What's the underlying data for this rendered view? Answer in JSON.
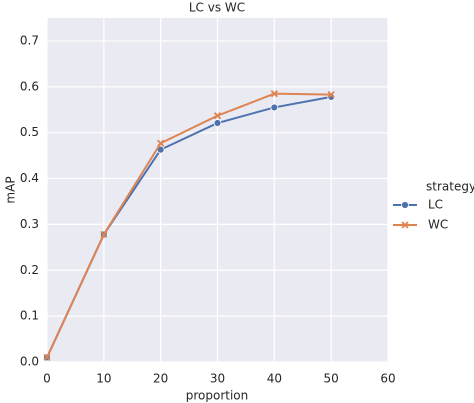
{
  "chart_data": {
    "type": "line",
    "title": "LC vs WC",
    "x_label": "proportion",
    "y_label": "mAP",
    "x": [
      0,
      10,
      20,
      30,
      40,
      50
    ],
    "series": [
      {
        "name": "LC",
        "color": "#4c72b0",
        "marker": "o",
        "values": [
          0.01,
          0.278,
          0.463,
          0.521,
          0.555,
          0.578
        ]
      },
      {
        "name": "WC",
        "color": "#dd8452",
        "marker": "x",
        "values": [
          0.01,
          0.278,
          0.477,
          0.537,
          0.585,
          0.583
        ]
      }
    ],
    "legend_title": "strategy",
    "legend": "right",
    "xlim": [
      0,
      60
    ],
    "xticks": [
      0,
      10,
      20,
      30,
      40,
      50,
      60
    ],
    "ylim": [
      0,
      0.75
    ],
    "yticks": [
      {
        "value": 0,
        "label": "0.0"
      },
      0.1,
      0.2,
      0.3,
      0.4,
      0.5,
      0.6,
      0.7
    ],
    "grid": true,
    "background": "#eaeaf2"
  }
}
